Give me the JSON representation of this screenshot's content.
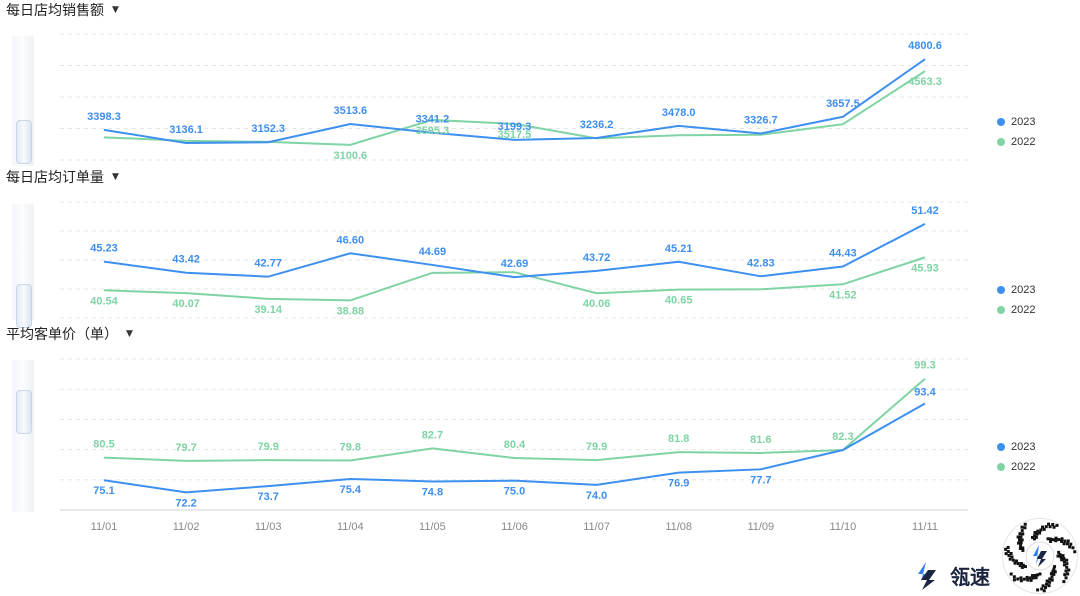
{
  "categories": [
    "11/01",
    "11/02",
    "11/03",
    "11/04",
    "11/05",
    "11/06",
    "11/07",
    "11/08",
    "11/09",
    "11/10",
    "11/11"
  ],
  "colors": {
    "s2023": "#3d8ff0",
    "s2022": "#7fd3a4",
    "grid": "#e3e6ea",
    "axis": "#cfd4da",
    "label_text": "#888888"
  },
  "legend": [
    {
      "name": "2023",
      "color": "#3d8ff0"
    },
    {
      "name": "2022",
      "color": "#7fd3a4"
    }
  ],
  "brand": {
    "name": "瓴速",
    "logo_icon": "lingsu-logo-icon",
    "qr_icon": "mini-program-qr-icon"
  },
  "chart_data": [
    {
      "type": "line",
      "title": "每日店均销售额",
      "categories": [
        "11/01",
        "11/02",
        "11/03",
        "11/04",
        "11/05",
        "11/06",
        "11/07",
        "11/08",
        "11/09",
        "11/10",
        "11/11"
      ],
      "series": [
        {
          "name": "2023",
          "values": [
            3398.3,
            3136.1,
            3152.3,
            3513.6,
            3341.2,
            3199.3,
            3236.2,
            3478.0,
            3326.7,
            3657.5,
            4800.6
          ],
          "labels": [
            "3398.3",
            "3136.1",
            "3152.3",
            "3513.6",
            "3341.2",
            "3199.3",
            "3236.2",
            "3478.0",
            "3326.7",
            "3657.5",
            "4800.6"
          ]
        },
        {
          "name": "2022",
          "values": [
            3250,
            3180,
            3160,
            3100.6,
            3595.3,
            3517.5,
            3230,
            3290,
            3300,
            3510,
            4563.3
          ],
          "labels": [
            "",
            "",
            "",
            "3100.6",
            "3595.3",
            "3517.5",
            "",
            "",
            "",
            "",
            "4563.3"
          ]
        }
      ],
      "ylim": [
        2800,
        5300
      ],
      "grid": true
    },
    {
      "type": "line",
      "title": "每日店均订单量",
      "categories": [
        "11/01",
        "11/02",
        "11/03",
        "11/04",
        "11/05",
        "11/06",
        "11/07",
        "11/08",
        "11/09",
        "11/10",
        "11/11"
      ],
      "series": [
        {
          "name": "2023",
          "values": [
            45.23,
            43.42,
            42.77,
            46.6,
            44.69,
            42.69,
            43.72,
            45.21,
            42.83,
            44.43,
            51.42
          ],
          "labels": [
            "45.23",
            "43.42",
            "42.77",
            "46.60",
            "44.69",
            "42.69",
            "43.72",
            "45.21",
            "42.83",
            "44.43",
            "51.42"
          ]
        },
        {
          "name": "2022",
          "values": [
            40.54,
            40.07,
            39.14,
            38.88,
            43.4,
            43.5,
            40.06,
            40.65,
            40.7,
            41.52,
            45.93
          ],
          "labels": [
            "40.54",
            "40.07",
            "39.14",
            "38.88",
            "",
            "",
            "40.06",
            "40.65",
            "",
            "41.52",
            "45.93"
          ]
        }
      ],
      "ylim": [
        36,
        55
      ],
      "grid": true
    },
    {
      "type": "line",
      "title": "平均客单价（单）",
      "categories": [
        "11/01",
        "11/02",
        "11/03",
        "11/04",
        "11/05",
        "11/06",
        "11/07",
        "11/08",
        "11/09",
        "11/10",
        "11/11"
      ],
      "series": [
        {
          "name": "2023",
          "values": [
            75.1,
            72.2,
            73.7,
            75.4,
            74.8,
            75.0,
            74.0,
            76.9,
            77.7,
            82.3,
            93.4
          ],
          "labels": [
            "75.1",
            "72.2",
            "73.7",
            "75.4",
            "74.8",
            "75.0",
            "74.0",
            "76.9",
            "77.7",
            "",
            ""
          ]
        },
        {
          "name": "2022",
          "values": [
            80.5,
            79.7,
            79.9,
            79.8,
            82.7,
            80.4,
            79.9,
            81.8,
            81.6,
            82.3,
            99.3
          ],
          "labels": [
            "80.5",
            "79.7",
            "79.9",
            "79.8",
            "82.7",
            "80.4",
            "79.9",
            "81.8",
            "81.6",
            "82.3",
            "99.3"
          ]
        }
      ],
      "extra_labels": [
        {
          "series": "2023",
          "index": 10,
          "text": "93.4"
        }
      ],
      "ylim": [
        68,
        104
      ],
      "grid": true
    }
  ]
}
